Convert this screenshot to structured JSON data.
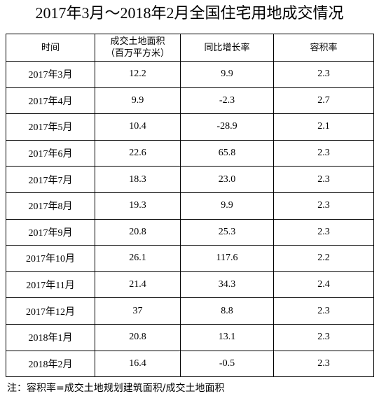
{
  "title": "2017年3月～2018年2月全国住宅用地成交情况",
  "table": {
    "header": [
      [
        "时间"
      ],
      [
        "成交土地面积",
        "（百万平方米）"
      ],
      [
        "同比增长率"
      ],
      [
        "容积率"
      ]
    ],
    "rows": [
      [
        "2017年3月",
        "12.2",
        "9.9",
        "2.3"
      ],
      [
        "2017年4月",
        "9.9",
        "-2.3",
        "2.7"
      ],
      [
        "2017年5月",
        "10.4",
        "-28.9",
        "2.1"
      ],
      [
        "2017年6月",
        "22.6",
        "65.8",
        "2.3"
      ],
      [
        "2017年7月",
        "18.3",
        "23.0",
        "2.3"
      ],
      [
        "2017年8月",
        "19.3",
        "9.9",
        "2.3"
      ],
      [
        "2017年9月",
        "20.8",
        "25.3",
        "2.3"
      ],
      [
        "2017年10月",
        "26.1",
        "117.6",
        "2.2"
      ],
      [
        "2017年11月",
        "21.4",
        "34.3",
        "2.4"
      ],
      [
        "2017年12月",
        "37",
        "8.8",
        "2.3"
      ],
      [
        "2018年1月",
        "20.8",
        "13.1",
        "2.3"
      ],
      [
        "2018年2月",
        "16.4",
        "-0.5",
        "2.3"
      ]
    ]
  },
  "footnote": "注：容积率=成交土地规划建筑面积/成交土地面积"
}
